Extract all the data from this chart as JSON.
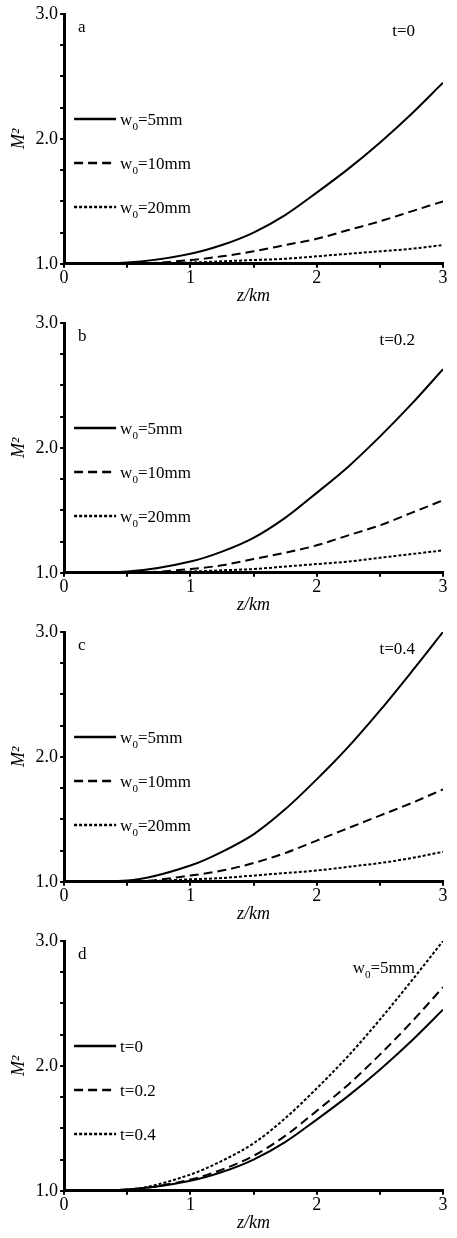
{
  "chart_data": [
    {
      "type": "line",
      "xlabel": "z/km",
      "ylabel": "M²",
      "annotations": [
        "a",
        "t=0"
      ],
      "legend": "left",
      "grid": false,
      "marker": "none",
      "x": [
        0,
        0.5,
        1,
        1.25,
        1.5,
        1.75,
        2,
        2.25,
        2.5,
        2.75,
        3
      ],
      "xlim": [
        0,
        3
      ],
      "xticks": [
        0,
        {
          "value": 0.5,
          "label": null
        },
        1,
        {
          "value": 1.5,
          "label": null
        },
        2,
        {
          "value": 2.5,
          "label": null
        },
        3
      ],
      "ylim": [
        1,
        3
      ],
      "yticks": [
        {
          "value": 1,
          "label": "1.0"
        },
        {
          "value": 1.25,
          "label": null
        },
        {
          "value": 1.5,
          "label": null
        },
        {
          "value": 1.75,
          "label": null
        },
        {
          "value": 2,
          "label": "2.0"
        },
        {
          "value": 2.25,
          "label": null
        },
        {
          "value": 2.5,
          "label": null
        },
        {
          "value": 2.75,
          "label": null
        },
        {
          "value": 3,
          "label": "3.0"
        }
      ],
      "series": [
        {
          "name": "w$_{0}$=5mm",
          "color": "#000000",
          "line_style": "solid",
          "values": [
            1,
            1.01,
            1.08,
            1.15,
            1.25,
            1.39,
            1.57,
            1.76,
            1.97,
            2.2,
            2.45
          ]
        },
        {
          "name": "w$_{0}$=10mm",
          "color": "#000000",
          "line_style": "dashed",
          "values": [
            1,
            1,
            1.03,
            1.06,
            1.1,
            1.15,
            1.2,
            1.27,
            1.34,
            1.42,
            1.5
          ]
        },
        {
          "name": "w$_{0}$=20mm",
          "color": "#000000",
          "line_style": "dotted",
          "values": [
            1,
            1,
            1.01,
            1.02,
            1.03,
            1.04,
            1.06,
            1.08,
            1.1,
            1.12,
            1.15
          ]
        }
      ]
    },
    {
      "type": "line",
      "xlabel": "z/km",
      "ylabel": "M²",
      "annotations": [
        "b",
        "t=0.2"
      ],
      "legend": "left",
      "grid": false,
      "marker": "none",
      "x": [
        0,
        0.5,
        1,
        1.25,
        1.5,
        1.75,
        2,
        2.25,
        2.5,
        2.75,
        3
      ],
      "xlim": [
        0,
        3
      ],
      "xticks": [
        0,
        {
          "value": 0.5,
          "label": null
        },
        1,
        {
          "value": 1.5,
          "label": null
        },
        2,
        {
          "value": 2.5,
          "label": null
        },
        3
      ],
      "ylim": [
        1,
        3
      ],
      "yticks": [
        {
          "value": 1,
          "label": "1.0"
        },
        {
          "value": 1.25,
          "label": null
        },
        {
          "value": 1.5,
          "label": null
        },
        {
          "value": 1.75,
          "label": null
        },
        {
          "value": 2,
          "label": "2.0"
        },
        {
          "value": 2.25,
          "label": null
        },
        {
          "value": 2.5,
          "label": null
        },
        {
          "value": 2.75,
          "label": null
        },
        {
          "value": 3,
          "label": "3.0"
        }
      ],
      "series": [
        {
          "name": "w$_{0}$=5mm",
          "color": "#000000",
          "line_style": "solid",
          "values": [
            1,
            1.01,
            1.09,
            1.17,
            1.28,
            1.44,
            1.64,
            1.85,
            2.09,
            2.35,
            2.63
          ]
        },
        {
          "name": "w$_{0}$=10mm",
          "color": "#000000",
          "line_style": "dashed",
          "values": [
            1,
            1,
            1.03,
            1.06,
            1.11,
            1.16,
            1.22,
            1.3,
            1.38,
            1.48,
            1.58
          ]
        },
        {
          "name": "w$_{0}$=20mm",
          "color": "#000000",
          "line_style": "dotted",
          "values": [
            1,
            1,
            1.01,
            1.02,
            1.03,
            1.05,
            1.07,
            1.09,
            1.12,
            1.15,
            1.18
          ]
        }
      ]
    },
    {
      "type": "line",
      "xlabel": "z/km",
      "ylabel": "M²",
      "annotations": [
        "c",
        "t=0.4"
      ],
      "legend": "left",
      "grid": false,
      "marker": "none",
      "x": [
        0,
        0.5,
        1,
        1.25,
        1.5,
        1.75,
        2,
        2.25,
        2.5,
        2.75,
        3
      ],
      "xlim": [
        0,
        3
      ],
      "xticks": [
        0,
        {
          "value": 0.5,
          "label": null
        },
        1,
        {
          "value": 1.5,
          "label": null
        },
        2,
        {
          "value": 2.5,
          "label": null
        },
        3
      ],
      "ylim": [
        1,
        3
      ],
      "yticks": [
        {
          "value": 1,
          "label": "1.0"
        },
        {
          "value": 1.25,
          "label": null
        },
        {
          "value": 1.5,
          "label": null
        },
        {
          "value": 1.75,
          "label": null
        },
        {
          "value": 2,
          "label": "2.0"
        },
        {
          "value": 2.25,
          "label": null
        },
        {
          "value": 2.5,
          "label": null
        },
        {
          "value": 2.75,
          "label": null
        },
        {
          "value": 3,
          "label": "3.0"
        }
      ],
      "series": [
        {
          "name": "w$_{0}$=5mm",
          "color": "#000000",
          "line_style": "solid",
          "values": [
            1,
            1.01,
            1.13,
            1.24,
            1.38,
            1.58,
            1.82,
            2.08,
            2.37,
            2.68,
            3.0
          ]
        },
        {
          "name": "w$_{0}$=10mm",
          "color": "#000000",
          "line_style": "dashed",
          "values": [
            1,
            1,
            1.05,
            1.09,
            1.15,
            1.23,
            1.33,
            1.43,
            1.53,
            1.63,
            1.74
          ]
        },
        {
          "name": "w$_{0}$=20mm",
          "color": "#000000",
          "line_style": "dotted",
          "values": [
            1,
            1,
            1.02,
            1.03,
            1.05,
            1.07,
            1.09,
            1.12,
            1.15,
            1.19,
            1.24
          ]
        }
      ]
    },
    {
      "type": "line",
      "xlabel": "z/km",
      "ylabel": "M²",
      "annotations": [
        "d",
        "w$_{0}$=5mm"
      ],
      "legend": "left",
      "grid": false,
      "marker": "none",
      "x": [
        0,
        0.5,
        1,
        1.25,
        1.5,
        1.75,
        2,
        2.25,
        2.5,
        2.75,
        3
      ],
      "xlim": [
        0,
        3
      ],
      "xticks": [
        0,
        {
          "value": 0.5,
          "label": null
        },
        1,
        {
          "value": 1.5,
          "label": null
        },
        2,
        {
          "value": 2.5,
          "label": null
        },
        3
      ],
      "ylim": [
        1,
        3
      ],
      "yticks": [
        {
          "value": 1,
          "label": "1.0"
        },
        {
          "value": 1.25,
          "label": null
        },
        {
          "value": 1.5,
          "label": null
        },
        {
          "value": 1.75,
          "label": null
        },
        {
          "value": 2,
          "label": "2.0"
        },
        {
          "value": 2.25,
          "label": null
        },
        {
          "value": 2.5,
          "label": null
        },
        {
          "value": 2.75,
          "label": null
        },
        {
          "value": 3,
          "label": "3.0"
        }
      ],
      "series": [
        {
          "name": "t=0",
          "color": "#000000",
          "line_style": "solid",
          "values": [
            1,
            1.01,
            1.08,
            1.15,
            1.25,
            1.39,
            1.57,
            1.76,
            1.97,
            2.2,
            2.45
          ]
        },
        {
          "name": "t=0.2",
          "color": "#000000",
          "line_style": "dashed",
          "values": [
            1,
            1.01,
            1.09,
            1.17,
            1.28,
            1.44,
            1.64,
            1.85,
            2.09,
            2.35,
            2.63
          ]
        },
        {
          "name": "t=0.4",
          "color": "#000000",
          "line_style": "dotted",
          "values": [
            1,
            1.01,
            1.13,
            1.24,
            1.38,
            1.58,
            1.82,
            2.08,
            2.37,
            2.68,
            3.0
          ]
        }
      ]
    }
  ]
}
